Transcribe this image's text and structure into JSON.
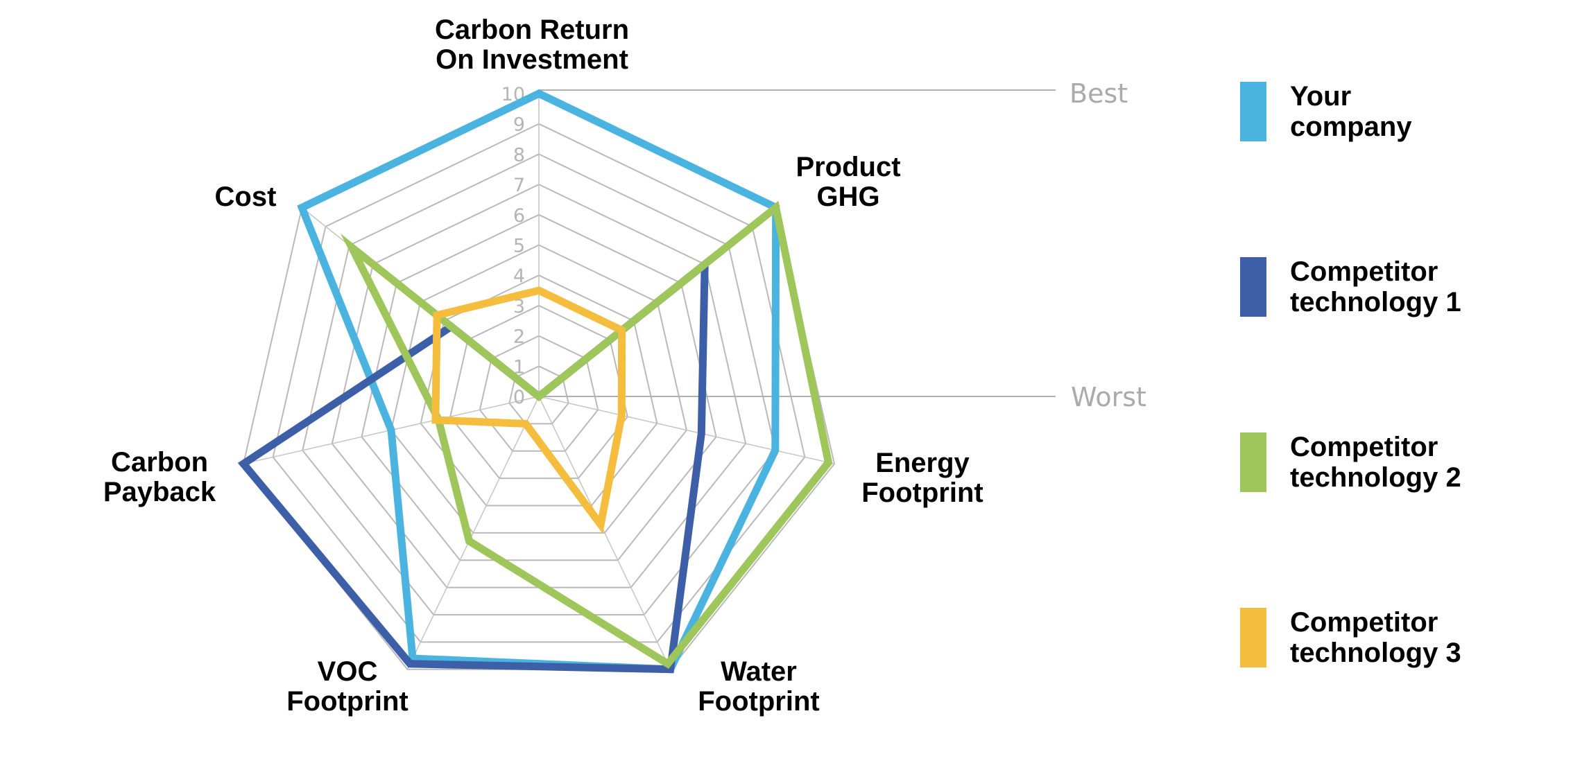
{
  "chart_data": {
    "type": "radar",
    "axes": [
      {
        "name": "Carbon Return On Investment",
        "lines": [
          "Carbon Return",
          "On Investment"
        ]
      },
      {
        "name": "Product GHG",
        "lines": [
          "Product",
          "GHG"
        ]
      },
      {
        "name": "Energy Footprint",
        "lines": [
          "Energy",
          "Footprint"
        ]
      },
      {
        "name": "Water Footprint",
        "lines": [
          "Water",
          "Footprint"
        ]
      },
      {
        "name": "VOC Footprint",
        "lines": [
          "VOC",
          "Footprint"
        ]
      },
      {
        "name": "Carbon Payback",
        "lines": [
          "Carbon",
          "Payback"
        ]
      },
      {
        "name": "Cost",
        "lines": [
          "Cost"
        ]
      }
    ],
    "ticks": [
      0,
      1,
      2,
      3,
      4,
      5,
      6,
      7,
      8,
      9,
      10
    ],
    "range": [
      0,
      10
    ],
    "grid": true,
    "best_label": "Best",
    "worst_label": "Worst",
    "legend_position": "right",
    "series": [
      {
        "name": "Your company",
        "lines": [
          "Your",
          "company"
        ],
        "color": "#4ab3e0",
        "values": [
          10,
          10,
          8,
          10,
          9.6,
          5,
          10
        ]
      },
      {
        "name": "Competitor technology 1",
        "lines": [
          "Competitor",
          "technology 1"
        ],
        "color": "#3c5fa8",
        "values": [
          0,
          7,
          5.5,
          10,
          9.8,
          10,
          3.7
        ]
      },
      {
        "name": "Competitor technology 2",
        "lines": [
          "Competitor",
          "technology 2"
        ],
        "color": "#9ec65b",
        "values": [
          0,
          10,
          9.8,
          9.8,
          5.3,
          3.4,
          7.9
        ]
      },
      {
        "name": "Competitor technology 3",
        "lines": [
          "Competitor",
          "technology 3"
        ],
        "color": "#f4bd3d",
        "values": [
          3.5,
          3.5,
          2.8,
          4.7,
          1.0,
          3.5,
          4.3
        ]
      }
    ]
  }
}
